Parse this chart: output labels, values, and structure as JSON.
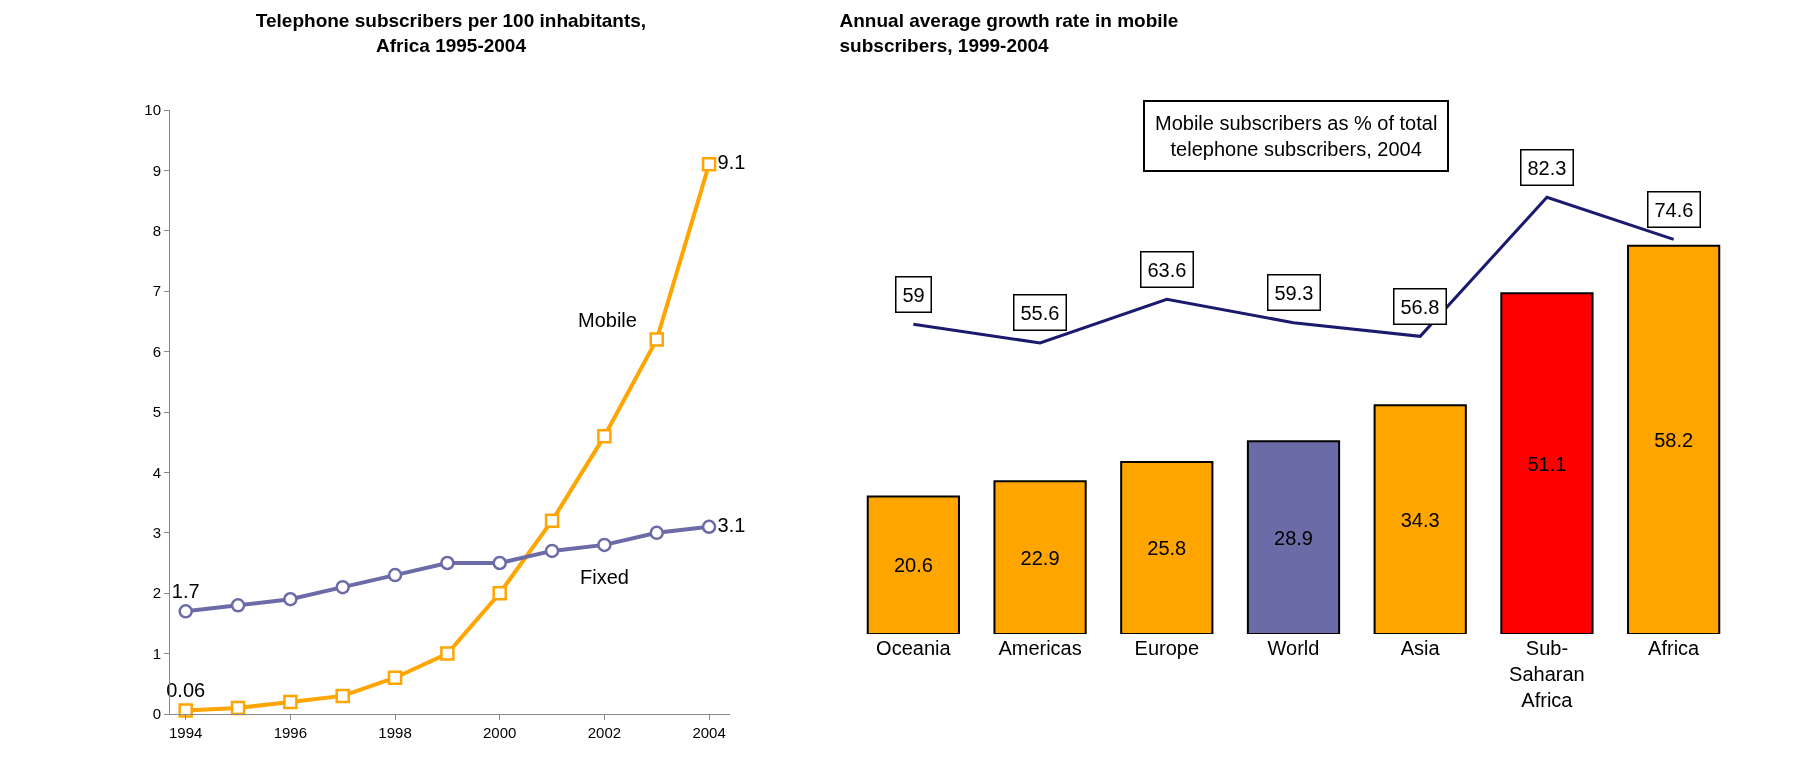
{
  "chart_data": [
    {
      "type": "line",
      "title": "Telephone subscribers per 100 inhabitants,\nAfrica 1995-2004",
      "x": [
        1994,
        1995,
        1996,
        1997,
        1998,
        1999,
        2000,
        2001,
        2002,
        2003,
        2004
      ],
      "xlim": [
        1993.7,
        2004.4
      ],
      "xticks": [
        1994,
        1996,
        1998,
        2000,
        2002,
        2004
      ],
      "ylim": [
        0,
        10
      ],
      "yticks": [
        0,
        1,
        2,
        3,
        4,
        5,
        6,
        7,
        8,
        9,
        10
      ],
      "grid": false,
      "legend": false,
      "series": [
        {
          "name": "Mobile",
          "color": "#ffa500",
          "marker": "square",
          "values": [
            0.06,
            0.1,
            0.2,
            0.3,
            0.6,
            1.0,
            2.0,
            3.2,
            4.6,
            6.2,
            9.1
          ],
          "value_labels": [
            "0.06",
            null,
            null,
            null,
            null,
            null,
            null,
            null,
            null,
            null,
            "9.1"
          ]
        },
        {
          "name": "Fixed",
          "color": "#6b6ba8",
          "marker": "circle",
          "values": [
            1.7,
            1.8,
            1.9,
            2.1,
            2.3,
            2.5,
            2.5,
            2.7,
            2.8,
            3.0,
            3.1
          ],
          "value_labels": [
            "1.7",
            null,
            null,
            null,
            null,
            null,
            null,
            null,
            null,
            null,
            "3.1"
          ]
        }
      ]
    },
    {
      "type": "bar",
      "title": "Annual average growth rate in mobile\nsubscribers, 1999-2004",
      "data_labels": true,
      "legend": false,
      "categories": [
        "Oceania",
        "Americas",
        "Europe",
        "World",
        "Asia",
        "Sub-Saharan Africa",
        "Africa"
      ],
      "series": [
        {
          "type": "bar",
          "colors": [
            "#ffa500",
            "#ffa500",
            "#ffa500",
            "#6b6ba8",
            "#ffa500",
            "#ff0000",
            "#ffa500"
          ],
          "values": [
            20.6,
            22.9,
            25.8,
            28.9,
            34.3,
            51.1,
            58.2
          ]
        },
        {
          "type": "line",
          "axis": "y2",
          "color": "#1a1a6e",
          "values": [
            59,
            55.6,
            63.6,
            59.3,
            56.8,
            82.3,
            74.6
          ]
        }
      ],
      "annotations": [
        "Mobile subscribers as % of total\ntelephone subscribers, 2004"
      ]
    }
  ]
}
